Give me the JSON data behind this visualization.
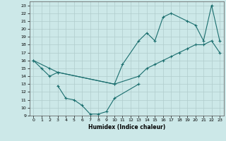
{
  "xlabel": "Humidex (Indice chaleur)",
  "xlim": [
    -0.5,
    23.5
  ],
  "ylim": [
    9,
    23.5
  ],
  "yticks": [
    9,
    10,
    11,
    12,
    13,
    14,
    15,
    16,
    17,
    18,
    19,
    20,
    21,
    22,
    23
  ],
  "xticks": [
    0,
    1,
    2,
    3,
    4,
    5,
    6,
    7,
    8,
    9,
    10,
    11,
    12,
    13,
    14,
    15,
    16,
    17,
    18,
    19,
    20,
    21,
    22,
    23
  ],
  "bg_color": "#cce8e8",
  "grid_color": "#b0cccc",
  "line_color": "#1a6e6e",
  "line1_x": [
    0,
    1,
    2,
    3,
    10,
    11,
    13,
    14,
    15,
    16,
    17,
    19,
    20,
    21,
    22,
    23
  ],
  "line1_y": [
    16,
    15,
    14,
    14.5,
    13,
    15.5,
    18.5,
    19.5,
    18.5,
    21.5,
    22,
    21,
    20.5,
    18.5,
    23,
    18.5
  ],
  "line2_x": [
    0,
    2,
    3,
    10,
    13,
    14,
    15,
    16,
    17,
    18,
    19,
    20,
    21,
    22,
    23
  ],
  "line2_y": [
    16,
    15,
    14.5,
    13,
    14,
    15,
    15.5,
    16,
    16.5,
    17,
    17.5,
    18,
    18,
    18.5,
    17
  ],
  "line3_x": [
    3,
    4,
    5,
    6,
    7,
    8,
    9,
    10,
    13
  ],
  "line3_y": [
    12.8,
    11.2,
    11,
    10.3,
    9.2,
    9.2,
    9.5,
    11.2,
    13
  ]
}
